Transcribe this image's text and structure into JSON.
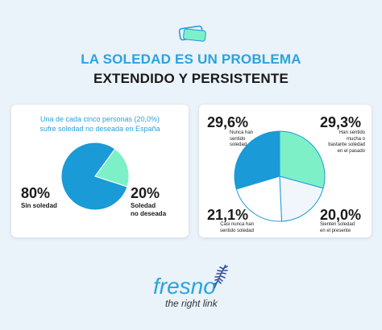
{
  "colors": {
    "accent": "#29a3e0",
    "pie_blue": "#1a9ad6",
    "pie_green": "#7ef0c8",
    "pie_white": "#ffffff",
    "pie_light": "#f0f6fb",
    "background": "#eaf2fa"
  },
  "header": {
    "title_line1": "LA SOLEDAD ES UN PROBLEMA",
    "title_line2": "EXTENDIDO Y PERSISTENTE",
    "logo_icon": "stacked-cards-icon"
  },
  "chart_data": [
    {
      "type": "pie",
      "title": "Una de cada cinco personas (20,0%) sufre soledad no deseada en España",
      "slices": [
        {
          "label": "Sin soledad",
          "value": 80,
          "display": "80%"
        },
        {
          "label": "Soledad no deseada",
          "value": 20,
          "display": "20%"
        }
      ]
    },
    {
      "type": "pie",
      "slices": [
        {
          "label": "Nunca han sentido soledad",
          "value": 29.6,
          "display": "29,6%"
        },
        {
          "label": "Han sentido mucha o bastante soledad en el pasado",
          "value": 29.3,
          "display": "29,3%"
        },
        {
          "label": "Sienten soledad en el presente",
          "value": 20.0,
          "display": "20,0%"
        },
        {
          "label": "Casi nunca han sentido soledad",
          "value": 21.1,
          "display": "21,1%"
        }
      ]
    }
  ],
  "left_labels": {
    "subtitle_line1": "Una de cada cinco personas (20,0%)",
    "subtitle_line2": "sufre soledad no deseada en España",
    "a_pct": "80%",
    "a_label": "Sin soledad",
    "b_pct": "20%",
    "b_label_line1": "Soledad",
    "b_label_line2": "no deseada"
  },
  "right_labels": {
    "tl_pct": "29,6%",
    "tl_l1": "Nunca han",
    "tl_l2": "sentido",
    "tl_l3": "soledad",
    "tr_pct": "29,3%",
    "tr_l1": "Han sentido",
    "tr_l2": "mucha o",
    "tr_l3": "bastante soledad",
    "tr_l4": "en el pasado",
    "bl_pct": "21,1%",
    "bl_l1": "Casi nunca han",
    "bl_l2": "sentido soledad",
    "br_pct": "20,0%",
    "br_l1": "Sienten soledad",
    "br_l2": "en el presente"
  },
  "footer": {
    "brand": "fresno",
    "tagline": "the right link",
    "leaf_icon": "fern-leaf-icon"
  }
}
